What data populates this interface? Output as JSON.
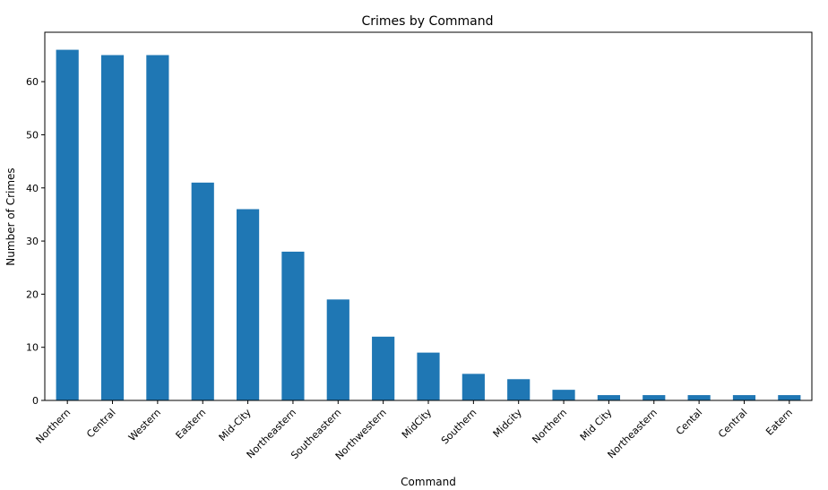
{
  "chart_data": {
    "type": "bar",
    "title": "Crimes by Command",
    "xlabel": "Command",
    "ylabel": "Number of Crimes",
    "categories": [
      "Northern",
      "Central",
      "Western",
      "Eastern",
      "Mid-City",
      "Northeastern",
      "Southeastern",
      "Northwestern",
      "MidCity",
      "Southern",
      "Midcity",
      "Northern ",
      "Mid City",
      "Northeastern ",
      "Cental",
      "Central ",
      "Eatern"
    ],
    "values": [
      66,
      65,
      65,
      41,
      36,
      28,
      19,
      12,
      9,
      5,
      4,
      2,
      1,
      1,
      1,
      1,
      1
    ],
    "yticks": [
      0,
      10,
      20,
      30,
      40,
      50,
      60
    ],
    "ylim": [
      0,
      69.3
    ],
    "bar_color": "#1f77b4",
    "grid": false,
    "legend": "none"
  }
}
